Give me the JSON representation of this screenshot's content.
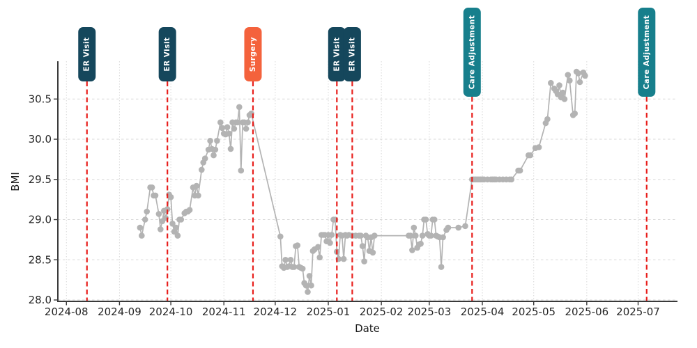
{
  "chart_data": {
    "type": "line",
    "title": "",
    "xlabel": "Date",
    "ylabel": "BMI",
    "x_domain": [
      "2024-07-27",
      "2025-07-24"
    ],
    "y_domain": [
      28.0,
      30.97
    ],
    "y_ticks": [
      28.0,
      28.5,
      29.0,
      29.5,
      30.0,
      30.5
    ],
    "x_ticks": [
      {
        "date": "2024-08-01",
        "label": "2024-08"
      },
      {
        "date": "2024-09-01",
        "label": "2024-09"
      },
      {
        "date": "2024-10-01",
        "label": "2024-10"
      },
      {
        "date": "2024-11-01",
        "label": "2024-11"
      },
      {
        "date": "2024-12-01",
        "label": "2024-12"
      },
      {
        "date": "2025-01-01",
        "label": "2025-01"
      },
      {
        "date": "2025-02-01",
        "label": "2025-02"
      },
      {
        "date": "2025-03-01",
        "label": "2025-03"
      },
      {
        "date": "2025-04-01",
        "label": "2025-04"
      },
      {
        "date": "2025-05-01",
        "label": "2025-05"
      },
      {
        "date": "2025-06-01",
        "label": "2025-06"
      },
      {
        "date": "2025-07-01",
        "label": "2025-07"
      }
    ],
    "grid": true,
    "legend_position": "none",
    "series": [
      {
        "name": "BMI",
        "color": "#b3b3b3",
        "points": [
          [
            "2024-09-13",
            28.9
          ],
          [
            "2024-09-14",
            28.8
          ],
          [
            "2024-09-16",
            29.0
          ],
          [
            "2024-09-17",
            29.1
          ],
          [
            "2024-09-19",
            29.4
          ],
          [
            "2024-09-20",
            29.4
          ],
          [
            "2024-09-21",
            29.3
          ],
          [
            "2024-09-22",
            29.3
          ],
          [
            "2024-09-24",
            29.07
          ],
          [
            "2024-09-25",
            28.88
          ],
          [
            "2024-09-26",
            28.98
          ],
          [
            "2024-09-27",
            29.11
          ],
          [
            "2024-09-28",
            29.02
          ],
          [
            "2024-09-29",
            29.13
          ],
          [
            "2024-09-30",
            29.31
          ],
          [
            "2024-10-01",
            29.28
          ],
          [
            "2024-10-02",
            28.95
          ],
          [
            "2024-10-03",
            28.85
          ],
          [
            "2024-10-04",
            28.9
          ],
          [
            "2024-10-05",
            28.8
          ],
          [
            "2024-10-06",
            29.0
          ],
          [
            "2024-10-07",
            29.0
          ],
          [
            "2024-10-09",
            29.08
          ],
          [
            "2024-10-10",
            29.1
          ],
          [
            "2024-10-11",
            29.1
          ],
          [
            "2024-10-12",
            29.12
          ],
          [
            "2024-10-14",
            29.4
          ],
          [
            "2024-10-15",
            29.3
          ],
          [
            "2024-10-16",
            29.42
          ],
          [
            "2024-10-17",
            29.3
          ],
          [
            "2024-10-19",
            29.62
          ],
          [
            "2024-10-20",
            29.71
          ],
          [
            "2024-10-21",
            29.76
          ],
          [
            "2024-10-23",
            29.87
          ],
          [
            "2024-10-24",
            29.98
          ],
          [
            "2024-10-25",
            29.88
          ],
          [
            "2024-10-26",
            29.8
          ],
          [
            "2024-10-27",
            29.87
          ],
          [
            "2024-10-28",
            29.98
          ],
          [
            "2024-10-30",
            30.21
          ],
          [
            "2024-10-31",
            30.14
          ],
          [
            "2024-11-01",
            30.07
          ],
          [
            "2024-11-02",
            30.06
          ],
          [
            "2024-11-03",
            30.15
          ],
          [
            "2024-11-04",
            30.07
          ],
          [
            "2024-11-05",
            29.88
          ],
          [
            "2024-11-06",
            30.21
          ],
          [
            "2024-11-07",
            30.13
          ],
          [
            "2024-11-08",
            30.21
          ],
          [
            "2024-11-09",
            30.21
          ],
          [
            "2024-11-10",
            30.4
          ],
          [
            "2024-11-11",
            29.61
          ],
          [
            "2024-11-12",
            30.21
          ],
          [
            "2024-11-13",
            30.21
          ],
          [
            "2024-11-14",
            30.13
          ],
          [
            "2024-11-15",
            30.21
          ],
          [
            "2024-11-16",
            30.3
          ],
          [
            "2024-11-17",
            30.32
          ],
          [
            "2024-12-04",
            28.79
          ],
          [
            "2024-12-05",
            28.42
          ],
          [
            "2024-12-06",
            28.4
          ],
          [
            "2024-12-07",
            28.5
          ],
          [
            "2024-12-08",
            28.41
          ],
          [
            "2024-12-09",
            28.42
          ],
          [
            "2024-12-10",
            28.5
          ],
          [
            "2024-12-11",
            28.41
          ],
          [
            "2024-12-12",
            28.41
          ],
          [
            "2024-12-13",
            28.67
          ],
          [
            "2024-12-14",
            28.68
          ],
          [
            "2024-12-15",
            28.41
          ],
          [
            "2024-12-16",
            28.4
          ],
          [
            "2024-12-17",
            28.39
          ],
          [
            "2024-12-18",
            28.21
          ],
          [
            "2024-12-19",
            28.18
          ],
          [
            "2024-12-20",
            28.1
          ],
          [
            "2024-12-21",
            28.3
          ],
          [
            "2024-12-22",
            28.18
          ],
          [
            "2024-12-23",
            28.61
          ],
          [
            "2024-12-24",
            28.63
          ],
          [
            "2024-12-26",
            28.66
          ],
          [
            "2024-12-27",
            28.53
          ],
          [
            "2024-12-28",
            28.81
          ],
          [
            "2024-12-29",
            28.81
          ],
          [
            "2024-12-30",
            28.81
          ],
          [
            "2024-12-31",
            28.73
          ],
          [
            "2025-01-01",
            28.81
          ],
          [
            "2025-01-02",
            28.71
          ],
          [
            "2025-01-03",
            28.81
          ],
          [
            "2025-01-04",
            29.0
          ],
          [
            "2025-01-05",
            29.0
          ],
          [
            "2025-01-06",
            28.6
          ],
          [
            "2025-01-07",
            28.51
          ],
          [
            "2025-01-08",
            28.81
          ],
          [
            "2025-01-09",
            28.8
          ],
          [
            "2025-01-10",
            28.51
          ],
          [
            "2025-01-11",
            28.81
          ],
          [
            "2025-01-12",
            28.8
          ],
          [
            "2025-01-13",
            28.81
          ],
          [
            "2025-01-15",
            28.8
          ],
          [
            "2025-01-17",
            28.8
          ],
          [
            "2025-01-19",
            28.8
          ],
          [
            "2025-01-20",
            28.8
          ],
          [
            "2025-01-21",
            28.67
          ],
          [
            "2025-01-22",
            28.48
          ],
          [
            "2025-01-23",
            28.8
          ],
          [
            "2025-01-24",
            28.78
          ],
          [
            "2025-01-25",
            28.61
          ],
          [
            "2025-01-26",
            28.78
          ],
          [
            "2025-01-27",
            28.59
          ],
          [
            "2025-01-28",
            28.8
          ],
          [
            "2025-02-17",
            28.8
          ],
          [
            "2025-02-18",
            28.8
          ],
          [
            "2025-02-19",
            28.62
          ],
          [
            "2025-02-20",
            28.9
          ],
          [
            "2025-02-21",
            28.8
          ],
          [
            "2025-02-22",
            28.65
          ],
          [
            "2025-02-23",
            28.69
          ],
          [
            "2025-02-24",
            28.7
          ],
          [
            "2025-02-25",
            28.8
          ],
          [
            "2025-02-26",
            29.0
          ],
          [
            "2025-02-27",
            29.0
          ],
          [
            "2025-02-28",
            28.82
          ],
          [
            "2025-03-01",
            28.8
          ],
          [
            "2025-03-02",
            28.8
          ],
          [
            "2025-03-03",
            29.0
          ],
          [
            "2025-03-04",
            29.0
          ],
          [
            "2025-03-05",
            28.8
          ],
          [
            "2025-03-06",
            28.79
          ],
          [
            "2025-03-07",
            28.78
          ],
          [
            "2025-03-08",
            28.41
          ],
          [
            "2025-03-09",
            28.78
          ],
          [
            "2025-03-11",
            28.87
          ],
          [
            "2025-03-12",
            28.9
          ],
          [
            "2025-03-18",
            28.9
          ],
          [
            "2025-03-22",
            28.92
          ],
          [
            "2025-03-26",
            29.5
          ],
          [
            "2025-03-27",
            29.5
          ],
          [
            "2025-03-28",
            29.5
          ],
          [
            "2025-03-29",
            29.5
          ],
          [
            "2025-03-30",
            29.5
          ],
          [
            "2025-03-31",
            29.5
          ],
          [
            "2025-04-01",
            29.5
          ],
          [
            "2025-04-02",
            29.5
          ],
          [
            "2025-04-04",
            29.5
          ],
          [
            "2025-04-06",
            29.5
          ],
          [
            "2025-04-07",
            29.5
          ],
          [
            "2025-04-08",
            29.5
          ],
          [
            "2025-04-09",
            29.5
          ],
          [
            "2025-04-11",
            29.5
          ],
          [
            "2025-04-13",
            29.5
          ],
          [
            "2025-04-15",
            29.5
          ],
          [
            "2025-04-17",
            29.5
          ],
          [
            "2025-04-18",
            29.5
          ],
          [
            "2025-04-22",
            29.61
          ],
          [
            "2025-04-23",
            29.61
          ],
          [
            "2025-04-28",
            29.8
          ],
          [
            "2025-04-29",
            29.8
          ],
          [
            "2025-05-02",
            29.89
          ],
          [
            "2025-05-04",
            29.9
          ],
          [
            "2025-05-08",
            30.2
          ],
          [
            "2025-05-09",
            30.25
          ],
          [
            "2025-05-11",
            30.7
          ],
          [
            "2025-05-13",
            30.63
          ],
          [
            "2025-05-14",
            30.6
          ],
          [
            "2025-05-15",
            30.56
          ],
          [
            "2025-05-16",
            30.67
          ],
          [
            "2025-05-17",
            30.52
          ],
          [
            "2025-05-18",
            30.58
          ],
          [
            "2025-05-19",
            30.5
          ],
          [
            "2025-05-21",
            30.8
          ],
          [
            "2025-05-22",
            30.73
          ],
          [
            "2025-05-24",
            30.3
          ],
          [
            "2025-05-25",
            30.32
          ],
          [
            "2025-05-26",
            30.84
          ],
          [
            "2025-05-27",
            30.82
          ],
          [
            "2025-05-28",
            30.71
          ],
          [
            "2025-05-30",
            30.83
          ],
          [
            "2025-05-31",
            30.79
          ]
        ]
      }
    ],
    "events": [
      {
        "label": "ER Visit",
        "date": "2024-08-13",
        "color": "#15475c"
      },
      {
        "label": "ER Visit",
        "date": "2024-09-29",
        "color": "#15475c"
      },
      {
        "label": "Surgery",
        "date": "2024-11-18",
        "color": "#f4623c"
      },
      {
        "label": "ER Visit",
        "date": "2025-01-06",
        "color": "#15475c"
      },
      {
        "label": "ER Visit",
        "date": "2025-01-15",
        "color": "#15475c"
      },
      {
        "label": "Care Adjustment",
        "date": "2025-03-26",
        "color": "#177f8c"
      },
      {
        "label": "Care Adjustment",
        "date": "2025-07-06",
        "color": "#177f8c"
      }
    ],
    "styles": {
      "event_line_color": "#e81f1c",
      "grid_color": "#d8d8d8",
      "axis_color": "#3a3a3a",
      "tick_label_color": "#262626",
      "marker_color": "#b3b3b3",
      "event_text_color": "#ffffff"
    }
  }
}
